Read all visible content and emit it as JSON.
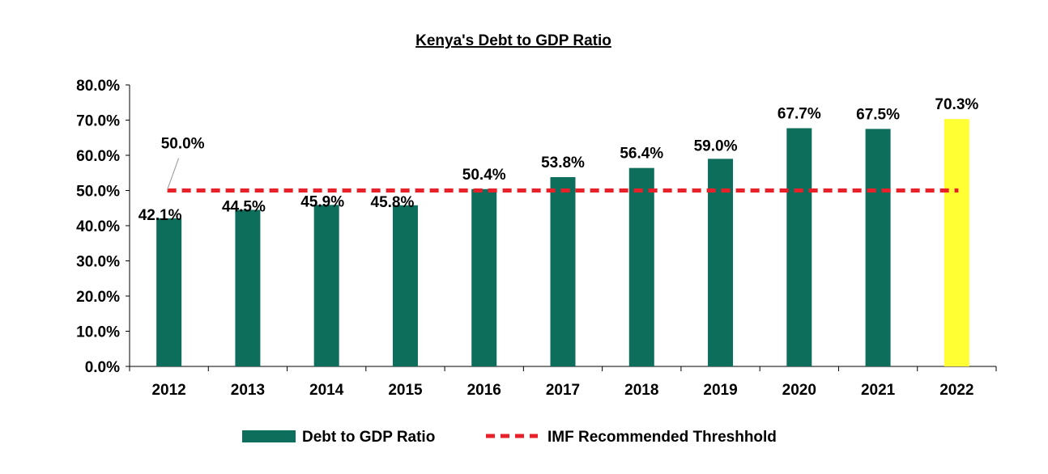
{
  "chart_data": {
    "type": "bar",
    "title": "Kenya's Debt to GDP Ratio",
    "categories": [
      "2012",
      "2013",
      "2014",
      "2015",
      "2016",
      "2017",
      "2018",
      "2019",
      "2020",
      "2021",
      "2022"
    ],
    "series": [
      {
        "name": "Debt to GDP Ratio",
        "values": [
          42.1,
          44.5,
          45.9,
          45.8,
          50.4,
          53.8,
          56.4,
          59.0,
          67.7,
          67.5,
          70.3
        ],
        "labels": [
          "42.1%",
          "44.5%",
          "45.9%",
          "45.8%",
          "50.4%",
          "53.8%",
          "56.4%",
          "59.0%",
          "67.7%",
          "67.5%",
          "70.3%"
        ],
        "color": "#0d6e5c",
        "highlight_category": "2022",
        "highlight_color": "#ffff33"
      },
      {
        "name": "IMF Recommended Threshhold",
        "type": "line",
        "style": "dashed",
        "value": 50.0,
        "label": "50.0%",
        "color": "#e8202a"
      }
    ],
    "ylim": [
      0,
      80
    ],
    "yticks": [
      "0.0%",
      "10.0%",
      "20.0%",
      "30.0%",
      "40.0%",
      "50.0%",
      "60.0%",
      "70.0%",
      "80.0%"
    ],
    "grid": false,
    "legend_position": "bottom"
  }
}
